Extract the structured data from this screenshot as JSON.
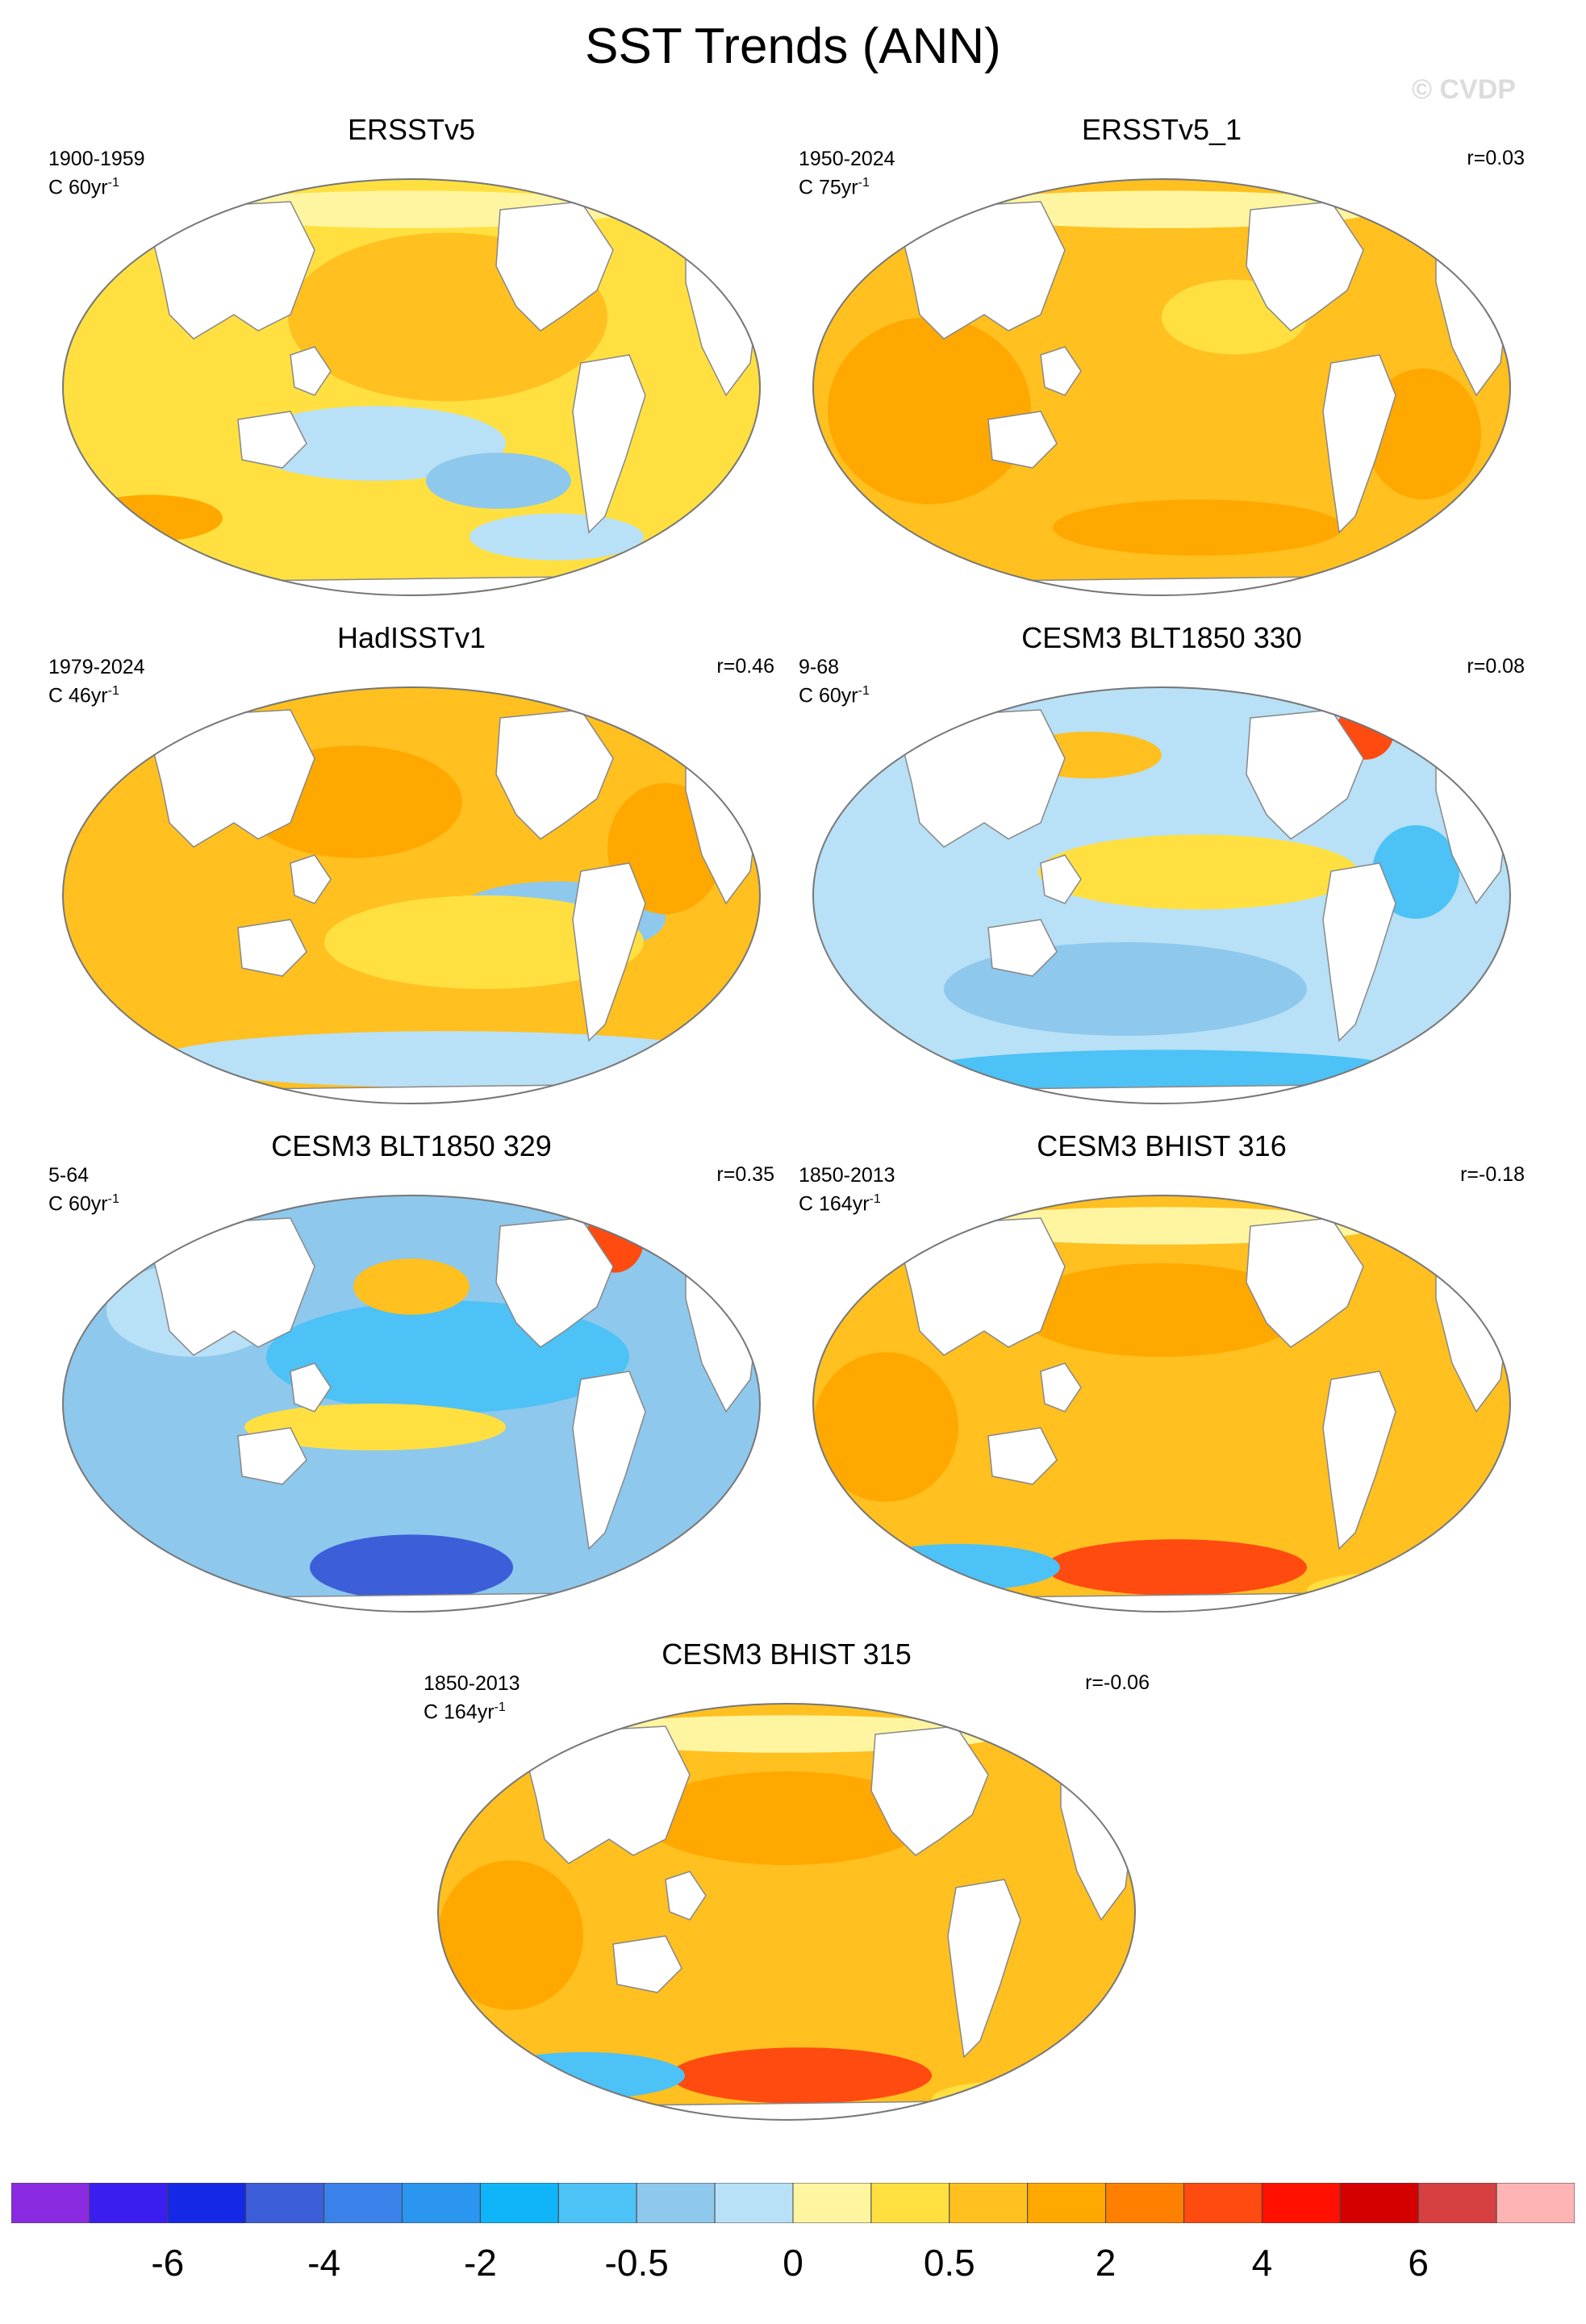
{
  "title": "SST Trends (ANN)",
  "watermark": "© CVDP",
  "panels": [
    {
      "title": "ERSSTv5",
      "period": "1900-1959",
      "units": "C 60yr",
      "r": "",
      "pattern": "mixed"
    },
    {
      "title": "ERSSTv5_1",
      "period": "1950-2024",
      "units": "C 75yr",
      "r": "r=0.03",
      "pattern": "warm"
    },
    {
      "title": "HadISSTv1",
      "period": "1979-2024",
      "units": "C 46yr",
      "r": "r=0.46",
      "pattern": "warm-cool-south"
    },
    {
      "title": "CESM3 BLT1850 330",
      "period": "9-68",
      "units": "C 60yr",
      "r": "r=0.08",
      "pattern": "cool"
    },
    {
      "title": "CESM3 BLT1850 329",
      "period": "5-64",
      "units": "C 60yr",
      "r": "r=0.35",
      "pattern": "cool-strong"
    },
    {
      "title": "CESM3 BHIST 316",
      "period": "1850-2013",
      "units": "C 164yr",
      "r": "r=-0.18",
      "pattern": "warm-hot-south"
    },
    {
      "title": "CESM3 BHIST 315",
      "period": "1850-2013",
      "units": "C 164yr",
      "r": "r=-0.06",
      "pattern": "warm-hot-south"
    }
  ],
  "colorbar": {
    "colors": [
      "#8a2be2",
      "#3a1df0",
      "#1428e6",
      "#3c5ed8",
      "#3a82ea",
      "#2a96f0",
      "#10b4f8",
      "#4cc2f6",
      "#8ec8ec",
      "#b8e0f6",
      "#fff5a0",
      "#ffe040",
      "#ffc020",
      "#ffa800",
      "#ff8000",
      "#ff4a10",
      "#ff1000",
      "#d40000",
      "#d64040",
      "#ffb4b4"
    ],
    "labels": [
      "-6",
      "-4",
      "-2",
      "-0.5",
      "0",
      "0.5",
      "2",
      "4",
      "6"
    ]
  }
}
